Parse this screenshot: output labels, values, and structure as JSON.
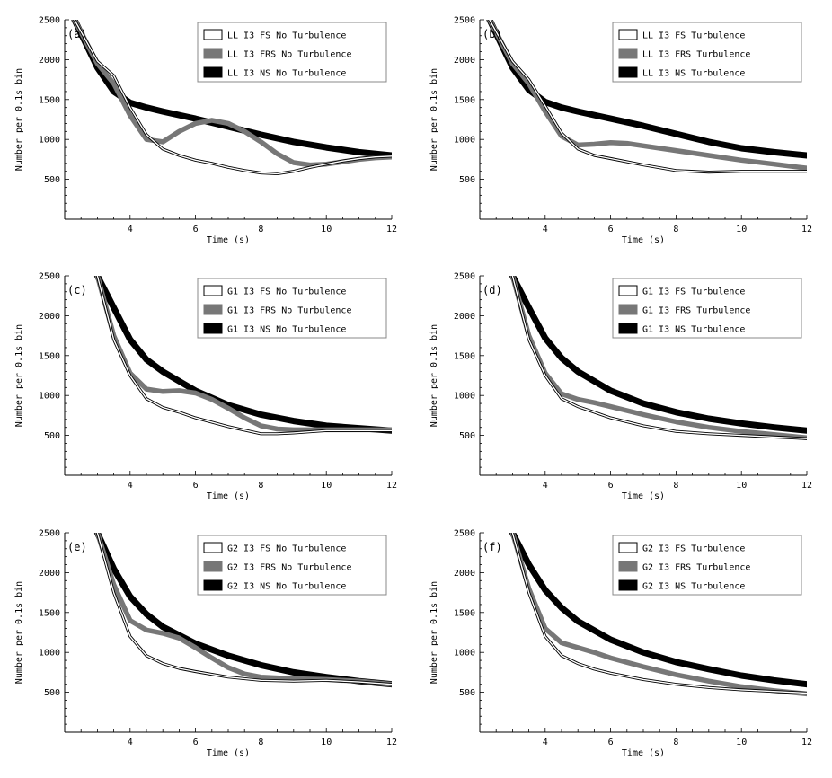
{
  "chart_data": [
    {
      "panel_label": "(a)",
      "type": "line",
      "xlabel": "Time (s)",
      "ylabel": "Number per 0.1s bin",
      "xlim": [
        2,
        12
      ],
      "ylim": [
        0,
        2500
      ],
      "xticks": [
        4,
        6,
        8,
        10,
        12
      ],
      "yticks": [
        500,
        1000,
        1500,
        2000,
        2500
      ],
      "legend_position": "top-right",
      "series": [
        {
          "name": "LL I3 FS No Turbulence",
          "style": "outline",
          "color": "#000000",
          "x": [
            2.3,
            3.0,
            3.5,
            4.0,
            4.5,
            5.0,
            5.5,
            6.0,
            6.5,
            7.0,
            7.5,
            8.0,
            8.5,
            9.0,
            9.5,
            10.0,
            10.5,
            11.0,
            11.5,
            12.0
          ],
          "y": [
            2500,
            1980,
            1800,
            1400,
            1060,
            880,
            800,
            740,
            700,
            650,
            610,
            580,
            570,
            600,
            650,
            690,
            730,
            760,
            780,
            790
          ]
        },
        {
          "name": "LL I3 FRS No Turbulence",
          "style": "medium",
          "color": "#777777",
          "x": [
            2.3,
            3.0,
            3.5,
            4.0,
            4.5,
            5.0,
            5.5,
            6.0,
            6.5,
            7.0,
            7.5,
            8.0,
            8.5,
            9.0,
            9.5,
            10.0,
            10.5,
            11.0,
            11.5,
            12.0
          ],
          "y": [
            2500,
            1950,
            1700,
            1300,
            1000,
            970,
            1100,
            1200,
            1240,
            1200,
            1100,
            970,
            820,
            710,
            680,
            690,
            720,
            750,
            770,
            780
          ]
        },
        {
          "name": "LL I3 NS No Turbulence",
          "style": "thick",
          "color": "#000000",
          "x": [
            2.3,
            3.0,
            3.5,
            4.0,
            4.5,
            5.0,
            6.0,
            7.0,
            8.0,
            9.0,
            10.0,
            11.0,
            12.0
          ],
          "y": [
            2500,
            1900,
            1600,
            1460,
            1400,
            1350,
            1260,
            1160,
            1060,
            970,
            900,
            840,
            800
          ]
        }
      ]
    },
    {
      "panel_label": "(b)",
      "type": "line",
      "xlabel": "Time (s)",
      "ylabel": "Number per 0.1s bin",
      "xlim": [
        2,
        12
      ],
      "ylim": [
        0,
        2500
      ],
      "xticks": [
        4,
        6,
        8,
        10,
        12
      ],
      "yticks": [
        500,
        1000,
        1500,
        2000,
        2500
      ],
      "legend_position": "top-right",
      "series": [
        {
          "name": "LL I3 FS Turbulence",
          "style": "outline",
          "color": "#000000",
          "x": [
            2.3,
            3.0,
            3.5,
            4.0,
            4.5,
            5.0,
            5.5,
            6.0,
            7.0,
            8.0,
            9.0,
            10.0,
            11.0,
            12.0
          ],
          "y": [
            2500,
            1980,
            1750,
            1420,
            1080,
            880,
            800,
            760,
            680,
            610,
            590,
            600,
            600,
            600
          ]
        },
        {
          "name": "LL I3 FRS Turbulence",
          "style": "medium",
          "color": "#777777",
          "x": [
            2.3,
            3.0,
            3.5,
            4.0,
            4.5,
            5.0,
            5.5,
            6.0,
            6.5,
            7.0,
            8.0,
            9.0,
            10.0,
            11.0,
            12.0
          ],
          "y": [
            2500,
            1950,
            1700,
            1350,
            1040,
            930,
            940,
            960,
            950,
            920,
            860,
            800,
            740,
            690,
            640
          ]
        },
        {
          "name": "LL I3 NS Turbulence",
          "style": "thick",
          "color": "#000000",
          "x": [
            2.3,
            3.0,
            3.5,
            4.0,
            4.5,
            5.0,
            6.0,
            7.0,
            8.0,
            9.0,
            10.0,
            11.0,
            12.0
          ],
          "y": [
            2500,
            1900,
            1620,
            1470,
            1400,
            1350,
            1260,
            1170,
            1070,
            970,
            890,
            840,
            800
          ]
        }
      ]
    },
    {
      "panel_label": "(c)",
      "type": "line",
      "xlabel": "Time (s)",
      "ylabel": "Number per 0.1s bin",
      "xlim": [
        2,
        12
      ],
      "ylim": [
        0,
        2500
      ],
      "xticks": [
        4,
        6,
        8,
        10,
        12
      ],
      "yticks": [
        500,
        1000,
        1500,
        2000,
        2500
      ],
      "legend_position": "top-right",
      "series": [
        {
          "name": "G1 I3 FS No Turbulence",
          "style": "outline",
          "color": "#000000",
          "x": [
            3.0,
            3.5,
            4.0,
            4.5,
            5.0,
            5.5,
            6.0,
            7.0,
            8.0,
            8.5,
            9.0,
            10.0,
            11.0,
            12.0
          ],
          "y": [
            2500,
            1700,
            1250,
            960,
            850,
            790,
            720,
            610,
            520,
            520,
            530,
            560,
            560,
            560
          ]
        },
        {
          "name": "G1 I3 FRS No Turbulence",
          "style": "medium",
          "color": "#777777",
          "x": [
            3.0,
            3.5,
            4.0,
            4.5,
            5.0,
            5.5,
            6.0,
            6.5,
            7.0,
            7.5,
            8.0,
            8.5,
            9.0,
            10.0,
            11.0,
            12.0
          ],
          "y": [
            2500,
            1750,
            1280,
            1080,
            1050,
            1060,
            1030,
            950,
            840,
            720,
            620,
            580,
            570,
            570,
            570,
            570
          ]
        },
        {
          "name": "G1 I3 NS No Turbulence",
          "style": "thick",
          "color": "#000000",
          "x": [
            3.0,
            3.5,
            4.0,
            4.5,
            5.0,
            6.0,
            7.0,
            8.0,
            9.0,
            10.0,
            11.0,
            12.0
          ],
          "y": [
            2500,
            2100,
            1700,
            1450,
            1300,
            1060,
            880,
            760,
            680,
            620,
            590,
            560
          ]
        }
      ]
    },
    {
      "panel_label": "(d)",
      "type": "line",
      "xlabel": "Time (s)",
      "ylabel": "Number per 0.1s bin",
      "xlim": [
        2,
        12
      ],
      "ylim": [
        0,
        2500
      ],
      "xticks": [
        4,
        6,
        8,
        10,
        12
      ],
      "yticks": [
        500,
        1000,
        1500,
        2000,
        2500
      ],
      "legend_position": "top-right",
      "series": [
        {
          "name": "G1 I3 FS Turbulence",
          "style": "outline",
          "color": "#000000",
          "x": [
            3.0,
            3.5,
            4.0,
            4.5,
            5.0,
            5.5,
            6.0,
            7.0,
            8.0,
            9.0,
            10.0,
            11.0,
            12.0
          ],
          "y": [
            2500,
            1700,
            1250,
            960,
            860,
            790,
            720,
            620,
            550,
            520,
            500,
            480,
            460
          ]
        },
        {
          "name": "G1 I3 FRS Turbulence",
          "style": "medium",
          "color": "#777777",
          "x": [
            3.0,
            3.5,
            4.0,
            4.5,
            5.0,
            5.5,
            6.0,
            7.0,
            8.0,
            9.0,
            10.0,
            11.0,
            12.0
          ],
          "y": [
            2500,
            1750,
            1280,
            1020,
            950,
            910,
            860,
            760,
            670,
            600,
            550,
            510,
            470
          ]
        },
        {
          "name": "G1 I3 NS Turbulence",
          "style": "thick",
          "color": "#000000",
          "x": [
            3.0,
            3.5,
            4.0,
            4.5,
            5.0,
            6.0,
            7.0,
            8.0,
            9.0,
            10.0,
            11.0,
            12.0
          ],
          "y": [
            2500,
            2100,
            1720,
            1470,
            1300,
            1060,
            900,
            790,
            710,
            650,
            600,
            560
          ]
        }
      ]
    },
    {
      "panel_label": "(e)",
      "type": "line",
      "xlabel": "Time (s)",
      "ylabel": "Number per 0.1s bin",
      "xlim": [
        2,
        12
      ],
      "ylim": [
        0,
        2500
      ],
      "xticks": [
        4,
        6,
        8,
        10,
        12
      ],
      "yticks": [
        500,
        1000,
        1500,
        2000,
        2500
      ],
      "legend_position": "top-right",
      "series": [
        {
          "name": "G2 I3 FS No Turbulence",
          "style": "outline",
          "color": "#000000",
          "x": [
            3.0,
            3.5,
            4.0,
            4.5,
            5.0,
            5.5,
            6.0,
            7.0,
            8.0,
            9.0,
            10.0,
            11.0,
            12.0
          ],
          "y": [
            2500,
            1750,
            1200,
            960,
            860,
            800,
            760,
            690,
            650,
            640,
            650,
            630,
            600
          ]
        },
        {
          "name": "G2 I3 FRS No Turbulence",
          "style": "medium",
          "color": "#777777",
          "x": [
            3.0,
            3.5,
            4.0,
            4.5,
            5.0,
            5.5,
            6.0,
            6.5,
            7.0,
            7.5,
            8.0,
            9.0,
            10.0,
            11.0,
            12.0
          ],
          "y": [
            2500,
            1850,
            1400,
            1280,
            1240,
            1180,
            1060,
            930,
            810,
            730,
            690,
            670,
            660,
            640,
            600
          ]
        },
        {
          "name": "G2 I3 NS No Turbulence",
          "style": "thick",
          "color": "#000000",
          "x": [
            3.0,
            3.5,
            4.0,
            4.5,
            5.0,
            6.0,
            7.0,
            8.0,
            9.0,
            10.0,
            11.0,
            12.0
          ],
          "y": [
            2500,
            2050,
            1700,
            1480,
            1320,
            1110,
            960,
            840,
            750,
            690,
            640,
            600
          ]
        }
      ]
    },
    {
      "panel_label": "(f)",
      "type": "line",
      "xlabel": "Time (s)",
      "ylabel": "Number per 0.1s bin",
      "xlim": [
        2,
        12
      ],
      "ylim": [
        0,
        2500
      ],
      "xticks": [
        4,
        6,
        8,
        10,
        12
      ],
      "yticks": [
        500,
        1000,
        1500,
        2000,
        2500
      ],
      "legend_position": "top-right",
      "series": [
        {
          "name": "G2 I3 FS Turbulence",
          "style": "outline",
          "color": "#000000",
          "x": [
            3.0,
            3.5,
            4.0,
            4.5,
            5.0,
            5.5,
            6.0,
            7.0,
            8.0,
            9.0,
            10.0,
            11.0,
            12.0
          ],
          "y": [
            2500,
            1750,
            1200,
            960,
            860,
            790,
            740,
            660,
            600,
            560,
            530,
            510,
            490
          ]
        },
        {
          "name": "G2 I3 FRS Turbulence",
          "style": "medium",
          "color": "#777777",
          "x": [
            3.0,
            3.5,
            4.0,
            4.5,
            5.0,
            5.5,
            6.0,
            7.0,
            8.0,
            9.0,
            10.0,
            11.0,
            12.0
          ],
          "y": [
            2500,
            1800,
            1300,
            1120,
            1060,
            1000,
            930,
            820,
            720,
            640,
            570,
            520,
            480
          ]
        },
        {
          "name": "G2 I3 NS Turbulence",
          "style": "thick",
          "color": "#000000",
          "x": [
            3.0,
            3.5,
            4.0,
            4.5,
            5.0,
            6.0,
            7.0,
            8.0,
            9.0,
            10.0,
            11.0,
            12.0
          ],
          "y": [
            2500,
            2100,
            1780,
            1560,
            1390,
            1160,
            1000,
            880,
            790,
            710,
            650,
            600
          ]
        }
      ]
    }
  ]
}
